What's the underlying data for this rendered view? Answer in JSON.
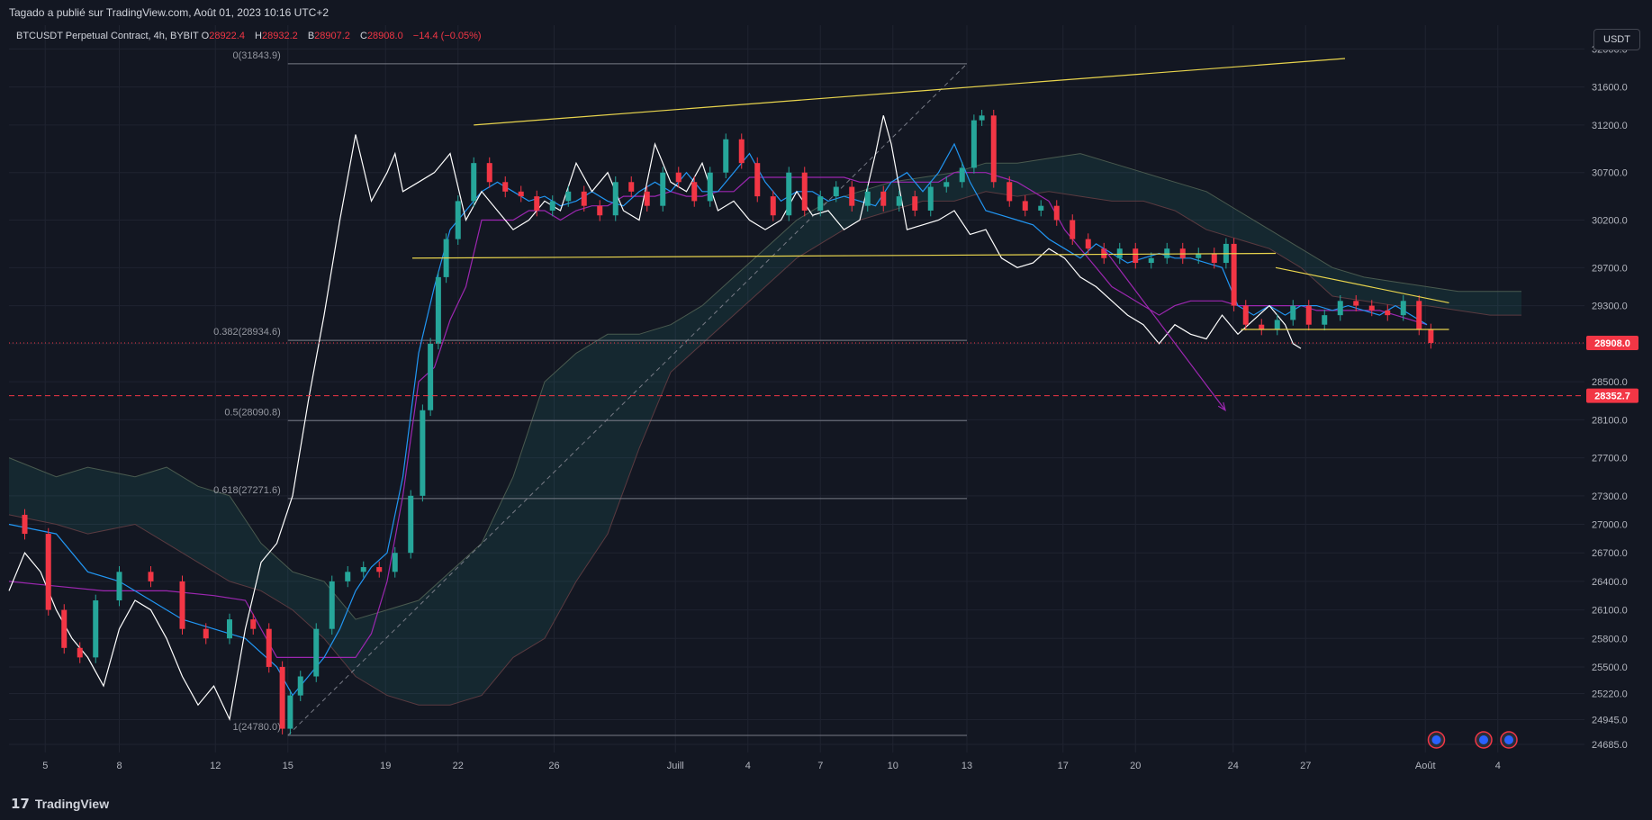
{
  "header": {
    "publish_text": "Tagado a publié sur TradingView.com, Août 01, 2023 10:16 UTC+2"
  },
  "legend": {
    "symbol": "BTCUSDT Perpetual Contract, 4h, BYBIT",
    "o_label": "O",
    "o": "28922.4",
    "h_label": "H",
    "h": "28932.2",
    "b_label": "B",
    "b": "28907.2",
    "c_label": "C",
    "c": "28908.0",
    "change": "−14.4 (−0.05%)"
  },
  "quote_currency": "USDT",
  "footer": {
    "logo_text": "TradingView"
  },
  "colors": {
    "bull": "#26a69a",
    "bear": "#f23645",
    "white_line": "#ffffff",
    "base_line": "#9c27b0",
    "conv_line": "#2196f3",
    "trend_line": "#e8d44d",
    "fib_line": "#787b86",
    "price_label": "#f23645"
  },
  "chart_data": {
    "type": "line",
    "title": "",
    "ylim": [
      24600,
      32250
    ],
    "y_ticks": [
      "32000.0",
      "31600.0",
      "31200.0",
      "30700.0",
      "30200.0",
      "29700.0",
      "29300.0",
      "28900.0",
      "28500.0",
      "28100.0",
      "27700.0",
      "27300.0",
      "27000.0",
      "26700.0",
      "26400.0",
      "26100.0",
      "25800.0",
      "25500.0",
      "25220.0",
      "24945.0",
      "24685.0"
    ],
    "x_range": [
      0,
      100
    ],
    "x_ticks": [
      {
        "x": 2.3,
        "label": "5"
      },
      {
        "x": 7.0,
        "label": "8"
      },
      {
        "x": 13.1,
        "label": "12"
      },
      {
        "x": 17.7,
        "label": "15"
      },
      {
        "x": 23.9,
        "label": "19"
      },
      {
        "x": 28.5,
        "label": "22"
      },
      {
        "x": 34.6,
        "label": "26"
      },
      {
        "x": 42.3,
        "label": "Juill"
      },
      {
        "x": 46.9,
        "label": "4"
      },
      {
        "x": 51.5,
        "label": "7"
      },
      {
        "x": 56.1,
        "label": "10"
      },
      {
        "x": 60.8,
        "label": "13"
      },
      {
        "x": 66.9,
        "label": "17"
      },
      {
        "x": 71.5,
        "label": "20"
      },
      {
        "x": 77.7,
        "label": "24"
      },
      {
        "x": 82.3,
        "label": "27"
      },
      {
        "x": 89.9,
        "label": "Août"
      },
      {
        "x": 94.5,
        "label": "4"
      }
    ],
    "price_series": {
      "name": "",
      "x": [
        0,
        2,
        3,
        4,
        5,
        6,
        8,
        10,
        12,
        13,
        15,
        16,
        17,
        17.7,
        18,
        19,
        20,
        21,
        22,
        23,
        24,
        25,
        26,
        26.5,
        27,
        27.5,
        28,
        29,
        30,
        31,
        32,
        33,
        34,
        35,
        36,
        37,
        38,
        39,
        40,
        41,
        42,
        43,
        44,
        45,
        46,
        47,
        48,
        49,
        50,
        51,
        52,
        53,
        54,
        55,
        56,
        57,
        58,
        59,
        60,
        61,
        61.5,
        62,
        63,
        64,
        65,
        66,
        67,
        68,
        69,
        70,
        71,
        72,
        73,
        74,
        75,
        76,
        77,
        77.5,
        78,
        79,
        80,
        81,
        82,
        83,
        84,
        85,
        86,
        87,
        88,
        89,
        90,
        90.5
      ],
      "y": [
        27100,
        26900,
        26100,
        25700,
        25600,
        26200,
        26500,
        26400,
        25900,
        25800,
        26000,
        25900,
        25500,
        24850,
        25200,
        25400,
        25900,
        26400,
        26500,
        26550,
        26500,
        26700,
        27300,
        28200,
        28900,
        29600,
        30000,
        30400,
        30800,
        30600,
        30500,
        30450,
        30300,
        30400,
        30500,
        30350,
        30250,
        30600,
        30500,
        30350,
        30700,
        30600,
        30400,
        30700,
        31050,
        30800,
        30450,
        30250,
        30700,
        30300,
        30450,
        30550,
        30350,
        30500,
        30350,
        30450,
        30300,
        30550,
        30600,
        30750,
        31250,
        31300,
        30600,
        30400,
        30300,
        30350,
        30200,
        30000,
        29900,
        29800,
        29900,
        29750,
        29800,
        29900,
        29800,
        29850,
        29750,
        29950,
        29300,
        29100,
        29050,
        29150,
        29300,
        29100,
        29200,
        29350,
        29300,
        29250,
        29200,
        29350,
        29050,
        28908
      ]
    },
    "white_series": {
      "name": "",
      "x": [
        0,
        1,
        2,
        3,
        4,
        5,
        6,
        7,
        8,
        9,
        10,
        11,
        12,
        13,
        14,
        15,
        16,
        17,
        18,
        19,
        20,
        21,
        22,
        23,
        24,
        24.5,
        25,
        26,
        27,
        28,
        29,
        30,
        31,
        32,
        33,
        34,
        35,
        36,
        37,
        38,
        39,
        40,
        41,
        42,
        43,
        44,
        45,
        46,
        47,
        48,
        49,
        50,
        51,
        52,
        53,
        54,
        55,
        55.5,
        56,
        57,
        58,
        59,
        60,
        61,
        62,
        63,
        64,
        65,
        66,
        67,
        68,
        69,
        70,
        71,
        72,
        72.5,
        73,
        74,
        75,
        76,
        77,
        78,
        79,
        80,
        81,
        81.5,
        82
      ],
      "y": [
        26300,
        26700,
        26500,
        26100,
        25800,
        25600,
        25300,
        25900,
        26200,
        26100,
        25800,
        25400,
        25100,
        25300,
        24950,
        25900,
        26600,
        26800,
        27300,
        28300,
        29200,
        30200,
        31100,
        30400,
        30700,
        30900,
        30500,
        30600,
        30700,
        30900,
        30200,
        30500,
        30300,
        30100,
        30200,
        30400,
        30300,
        30800,
        30500,
        30700,
        30300,
        30200,
        31000,
        30600,
        30500,
        30800,
        30300,
        30400,
        30200,
        30100,
        30200,
        30500,
        30250,
        30300,
        30100,
        30200,
        30900,
        31300,
        31000,
        30100,
        30150,
        30200,
        30300,
        30050,
        30100,
        29800,
        29700,
        29750,
        29900,
        29800,
        29600,
        29500,
        29350,
        29200,
        29100,
        29000,
        28900,
        29100,
        29000,
        28950,
        29200,
        29000,
        29150,
        29300,
        29100,
        28900,
        28850
      ]
    },
    "base_line": {
      "name": "",
      "x": [
        0,
        3,
        6,
        10,
        13,
        15,
        17,
        18,
        20,
        22,
        23,
        24,
        25,
        26,
        27,
        28,
        29,
        30,
        31,
        32,
        33,
        34,
        35,
        36,
        37,
        38,
        39,
        40,
        41,
        42,
        43,
        44,
        45,
        46,
        47,
        48,
        49,
        50,
        51,
        52,
        53,
        54,
        55,
        56,
        57,
        58,
        59,
        60,
        61,
        62,
        63,
        64,
        65,
        66,
        67,
        68,
        69,
        70,
        71,
        72,
        73,
        74,
        75,
        76,
        77,
        78,
        79,
        80,
        81,
        82,
        83,
        84,
        85,
        86,
        87,
        88,
        89,
        90
      ],
      "y": [
        26400,
        26350,
        26300,
        26300,
        26250,
        26200,
        25600,
        25600,
        25600,
        25600,
        25850,
        26400,
        27300,
        28500,
        28650,
        29150,
        29500,
        30200,
        30200,
        30200,
        30300,
        30300,
        30200,
        30300,
        30350,
        30350,
        30450,
        30450,
        30450,
        30500,
        30450,
        30450,
        30500,
        30500,
        30650,
        30650,
        30650,
        30650,
        30650,
        30650,
        30650,
        30600,
        30600,
        30600,
        30600,
        30600,
        30600,
        30700,
        30700,
        30700,
        30650,
        30600,
        30500,
        30400,
        30100,
        29900,
        29700,
        29500,
        29400,
        29300,
        29200,
        29300,
        29350,
        29350,
        29350,
        29300,
        29300,
        29300,
        29300,
        29300,
        29250,
        29250,
        29250,
        29250,
        29250,
        29200,
        29150,
        29100
      ]
    },
    "conv_line": {
      "name": "",
      "x": [
        0,
        3,
        5,
        7,
        9,
        11,
        13,
        15,
        17,
        18,
        19,
        20,
        21,
        22,
        23,
        24,
        25,
        26,
        27,
        28,
        29,
        30,
        31,
        32,
        33,
        34,
        35,
        36,
        37,
        38,
        39,
        40,
        41,
        42,
        43,
        44,
        45,
        46,
        47,
        48,
        49,
        50,
        51,
        52,
        53,
        54,
        55,
        56,
        57,
        58,
        59,
        60,
        61,
        62,
        63,
        64,
        65,
        66,
        67,
        68,
        69,
        70,
        71,
        72,
        73,
        74,
        75,
        76,
        77,
        78,
        79,
        80,
        81,
        82,
        83,
        84,
        85,
        86,
        87,
        88,
        89,
        90
      ],
      "y": [
        27000,
        26900,
        26500,
        26400,
        26200,
        26000,
        25900,
        25800,
        25500,
        25200,
        25400,
        25600,
        25900,
        26300,
        26550,
        26700,
        27500,
        28800,
        29500,
        30100,
        30300,
        30500,
        30600,
        30500,
        30400,
        30450,
        30350,
        30400,
        30500,
        30400,
        30350,
        30500,
        30600,
        30500,
        30700,
        30500,
        30500,
        30700,
        30900,
        30600,
        30400,
        30500,
        30500,
        30400,
        30450,
        30400,
        30350,
        30600,
        30700,
        30500,
        30700,
        31000,
        30600,
        30300,
        30250,
        30200,
        30150,
        30000,
        29900,
        29800,
        29950,
        29850,
        29750,
        29800,
        29850,
        29800,
        29800,
        29750,
        29700,
        29300,
        29200,
        29300,
        29200,
        29300,
        29300,
        29250,
        29300,
        29250,
        29200,
        29300,
        29200,
        29100
      ]
    },
    "cloud_upper": {
      "name": "",
      "x": [
        0,
        3,
        5,
        8,
        10,
        12,
        14,
        16,
        18,
        20,
        22,
        24,
        26,
        28,
        30,
        32,
        34,
        36,
        38,
        40,
        42,
        44,
        46,
        48,
        50,
        52,
        54,
        56,
        58,
        60,
        62,
        64,
        66,
        68,
        70,
        72,
        74,
        76,
        78,
        80,
        82,
        84,
        86,
        88,
        90,
        92,
        94,
        96
      ],
      "y": [
        27700,
        27500,
        27600,
        27500,
        27600,
        27400,
        27300,
        26800,
        26500,
        26400,
        26000,
        26100,
        26200,
        26500,
        26800,
        27500,
        28500,
        28800,
        29000,
        29000,
        29100,
        29300,
        29600,
        29900,
        30200,
        30400,
        30500,
        30600,
        30650,
        30700,
        30800,
        30800,
        30850,
        30900,
        30800,
        30700,
        30600,
        30500,
        30300,
        30100,
        29900,
        29700,
        29600,
        29550,
        29500,
        29450,
        29450,
        29450
      ]
    },
    "cloud_lower": {
      "name": "",
      "x": [
        0,
        3,
        5,
        8,
        10,
        12,
        14,
        16,
        18,
        20,
        22,
        24,
        26,
        28,
        30,
        32,
        34,
        36,
        38,
        40,
        42,
        44,
        46,
        48,
        50,
        52,
        54,
        56,
        58,
        60,
        62,
        64,
        66,
        68,
        70,
        72,
        74,
        76,
        78,
        80,
        82,
        84,
        86,
        88,
        90,
        92,
        94,
        96
      ],
      "y": [
        27100,
        27000,
        26900,
        27000,
        26800,
        26600,
        26400,
        26300,
        26100,
        25800,
        25400,
        25200,
        25100,
        25100,
        25200,
        25600,
        25800,
        26400,
        26900,
        27800,
        28600,
        28900,
        29200,
        29500,
        29800,
        30000,
        30200,
        30300,
        30400,
        30400,
        30500,
        30450,
        30500,
        30450,
        30400,
        30400,
        30300,
        30100,
        30000,
        29900,
        29700,
        29400,
        29350,
        29300,
        29300,
        29250,
        29200,
        29200
      ]
    },
    "fib_levels": [
      {
        "label": "0(31843.9)",
        "value": 31843.9
      },
      {
        "label": "0.382(28934.6)",
        "value": 28934.6
      },
      {
        "label": "0.5(28090.8)",
        "value": 28090.8
      },
      {
        "label": "0.618(27271.6)",
        "value": 27271.6
      },
      {
        "label": "1(24780.0)",
        "value": 24780.0
      }
    ],
    "fib_x_range": [
      17.7,
      60.8
    ],
    "trend_lines": [
      {
        "x1": 29.5,
        "y1": 31200,
        "x2": 84.8,
        "y2": 31900
      },
      {
        "x1": 25.6,
        "y1": 29800,
        "x2": 80.4,
        "y2": 29850
      },
      {
        "x1": 80.4,
        "y1": 29700,
        "x2": 91.4,
        "y2": 29330
      },
      {
        "x1": 78.2,
        "y1": 29050,
        "x2": 91.4,
        "y2": 29050
      }
    ],
    "diagonal": {
      "x1": 17.7,
      "y1": 24780,
      "x2": 60.8,
      "y2": 31843.9
    },
    "purple_arrow": {
      "x1": 69.5,
      "y1": 29900,
      "x2": 77.2,
      "y2": 28200
    },
    "current_price": {
      "value": 28908.0,
      "label": "28908.0"
    },
    "marked_price": {
      "value": 28352.7,
      "label": "28352.7"
    },
    "event_markers": [
      {
        "x": 90.6
      },
      {
        "x": 93.6
      },
      {
        "x": 95.2
      }
    ]
  }
}
